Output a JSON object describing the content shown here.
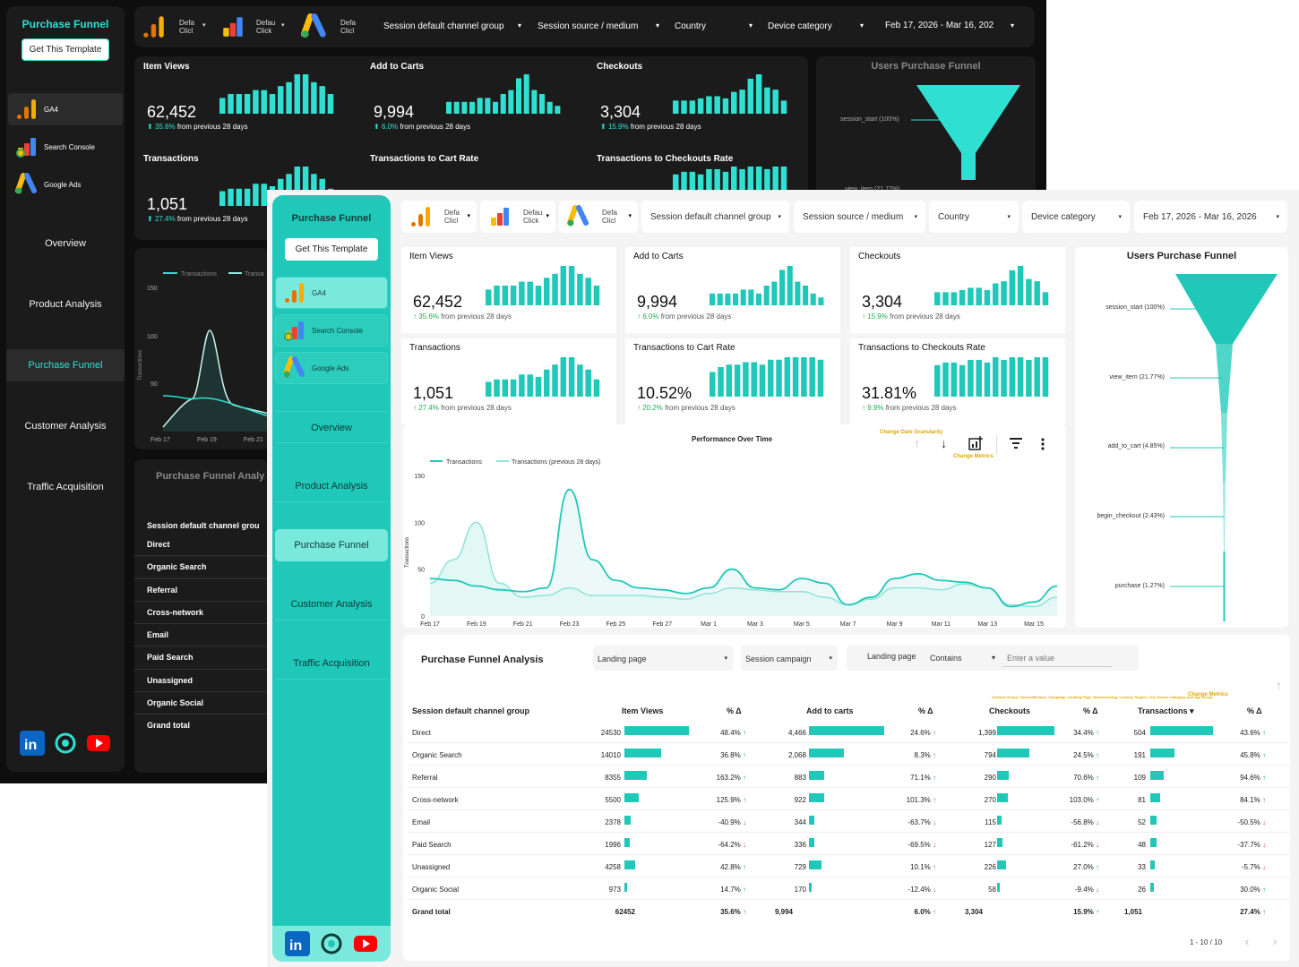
{
  "app_title": "Purchase Funnel",
  "template_button": "Get This Template",
  "sources": [
    {
      "label": "GA4",
      "icon": "ga4-icon"
    },
    {
      "label": "Search Console",
      "icon": "search-console-icon"
    },
    {
      "label": "Google Ads",
      "icon": "google-ads-icon"
    }
  ],
  "nav": [
    "Overview",
    "Product Analysis",
    "Purchase Funnel",
    "Customer Analysis",
    "Traffic Acquisition"
  ],
  "active_nav": "Purchase Funnel",
  "filters": {
    "logo_filter_labels": [
      "Defa Clicl",
      "Defau Click",
      "Defa Clicl"
    ],
    "channel_group": "Session default channel group",
    "source_medium": "Session source / medium",
    "country": "Country",
    "device": "Device category",
    "date_range": "Feb 17, 2026 - Mar 16, 2026",
    "date_range_dark": "Feb 17, 2026 - Mar 16, 202"
  },
  "kpis": [
    {
      "title": "Item Views",
      "value": "62,452",
      "change": "35.6%",
      "suffix": "from previous 28 days",
      "bars": [
        8,
        10,
        10,
        10,
        12,
        12,
        10,
        14,
        16,
        20,
        20,
        16,
        14,
        10
      ]
    },
    {
      "title": "Add to Carts",
      "value": "9,994",
      "change": "6.0%",
      "suffix": "from previous 28 days",
      "bars": [
        3,
        3,
        3,
        3,
        4,
        4,
        3,
        5,
        6,
        9,
        10,
        6,
        5,
        3,
        2
      ]
    },
    {
      "title": "Checkouts",
      "value": "3,304",
      "change": "15.9%",
      "suffix": "from previous 28 days",
      "bars": [
        6,
        6,
        6,
        7,
        8,
        8,
        7,
        10,
        11,
        16,
        18,
        12,
        11,
        6
      ]
    },
    {
      "title": "Transactions",
      "value": "1,051",
      "change": "27.4%",
      "suffix": "from previous 28 days",
      "bars": [
        6,
        7,
        7,
        7,
        9,
        9,
        8,
        11,
        13,
        16,
        16,
        13,
        11,
        7
      ]
    },
    {
      "title": "Transactions to Cart Rate",
      "value": "10.52%",
      "change": "20.2%",
      "suffix": "from previous 28 days",
      "bars": [
        10,
        12,
        13,
        13,
        14,
        14,
        13,
        15,
        15,
        16,
        16,
        16,
        16,
        15
      ]
    },
    {
      "title": "Transactions to Checkouts Rate",
      "value": "31.81%",
      "change": "9.9%",
      "suffix": "from previous 28 days",
      "bars": [
        12,
        13,
        13,
        12,
        14,
        14,
        13,
        15,
        14,
        15,
        15,
        14,
        15,
        15
      ]
    }
  ],
  "funnel": {
    "title": "Users Purchase Funnel",
    "stages": [
      {
        "label": "session_start (100%)",
        "pct": 100
      },
      {
        "label": "view_item (21.77%)",
        "pct": 21.77
      },
      {
        "label": "add_to_cart (4.85%)",
        "pct": 4.85
      },
      {
        "label": "begin_checkout (2.43%)",
        "pct": 2.43
      },
      {
        "label": "purchase (1.27%)",
        "pct": 1.27
      }
    ],
    "dark_labels": [
      "session_start (100%)",
      "view_item (21.77%)"
    ]
  },
  "chart_data": {
    "type": "line",
    "title": "Performance Over Time",
    "xlabel": "",
    "ylabel": "Transactions",
    "ylim": [
      0,
      150
    ],
    "yticks": [
      0,
      50,
      100,
      150
    ],
    "categories": [
      "Feb 17",
      "Feb 18",
      "Feb 19",
      "Feb 20",
      "Feb 21",
      "Feb 22",
      "Feb 23",
      "Feb 24",
      "Feb 25",
      "Feb 26",
      "Feb 27",
      "Feb 28",
      "Mar 1",
      "Mar 2",
      "Mar 3",
      "Mar 4",
      "Mar 5",
      "Mar 6",
      "Mar 7",
      "Mar 8",
      "Mar 9",
      "Mar 10",
      "Mar 11",
      "Mar 12",
      "Mar 13",
      "Mar 14",
      "Mar 15",
      "Mar 16"
    ],
    "tick_labels": [
      "Feb 17",
      "Feb 19",
      "Feb 21",
      "Feb 23",
      "Feb 25",
      "Feb 27",
      "Mar 1",
      "Mar 3",
      "Mar 5",
      "Mar 7",
      "Mar 9",
      "Mar 11",
      "Mar 13",
      "Mar 15"
    ],
    "series": [
      {
        "name": "Transactions",
        "values": [
          40,
          38,
          32,
          28,
          26,
          30,
          135,
          60,
          38,
          30,
          28,
          24,
          30,
          50,
          30,
          28,
          40,
          35,
          12,
          20,
          40,
          45,
          38,
          36,
          30,
          10,
          15,
          32
        ]
      },
      {
        "name": "Transactions (previous 28 days)",
        "values": [
          35,
          60,
          100,
          35,
          20,
          22,
          30,
          22,
          22,
          22,
          20,
          18,
          24,
          30,
          28,
          26,
          26,
          20,
          12,
          18,
          30,
          30,
          28,
          34,
          30,
          12,
          10,
          20
        ]
      }
    ],
    "annotations": [
      "Change Date Granularity",
      "Change Metrics"
    ]
  },
  "table": {
    "title": "Purchase Funnel Analysis",
    "dark_title": "Purchase Funnel Analy",
    "dark_header": "Session default channel grou",
    "controls": {
      "landing_page": "Landing page",
      "session_campaign": "Session campaign",
      "landing_label": "Landing page",
      "match": "Contains",
      "value_placeholder": "Enter a value"
    },
    "hint": "Channel Group, Source/Medium, Campaign, Landing Page, New/returning, Country, Region, City, Device Category, and Age Group",
    "change_metrics": "Change Metrics",
    "headers": [
      "Session default channel group",
      "Item Views",
      "% Δ",
      "Add to carts",
      "% Δ",
      "Checkouts",
      "% Δ",
      "Transactions ▾",
      "% Δ"
    ],
    "rows": [
      {
        "ch": "Direct",
        "iv": "24530",
        "iv_n": 24530,
        "ivp": "48.4%",
        "ivu": true,
        "ac": "4,466",
        "ac_n": 4466,
        "acp": "24.6%",
        "acu": true,
        "co": "1,399",
        "co_n": 1399,
        "cop": "34.4%",
        "cou": true,
        "tr": "504",
        "tr_n": 504,
        "trp": "43.6%",
        "tru": true
      },
      {
        "ch": "Organic Search",
        "iv": "14010",
        "iv_n": 14010,
        "ivp": "36.8%",
        "ivu": true,
        "ac": "2,068",
        "ac_n": 2068,
        "acp": "8.3%",
        "acu": true,
        "co": "794",
        "co_n": 794,
        "cop": "24.5%",
        "cou": true,
        "tr": "191",
        "tr_n": 191,
        "trp": "45.8%",
        "tru": true
      },
      {
        "ch": "Referral",
        "iv": "8355",
        "iv_n": 8355,
        "ivp": "163.2%",
        "ivu": true,
        "ac": "883",
        "ac_n": 883,
        "acp": "71.1%",
        "acu": true,
        "co": "290",
        "co_n": 290,
        "cop": "70.6%",
        "cou": true,
        "tr": "109",
        "tr_n": 109,
        "trp": "94.6%",
        "tru": true
      },
      {
        "ch": "Cross-network",
        "iv": "5500",
        "iv_n": 5500,
        "ivp": "125.9%",
        "ivu": true,
        "ac": "922",
        "ac_n": 922,
        "acp": "101.3%",
        "acu": true,
        "co": "270",
        "co_n": 270,
        "cop": "103.0%",
        "cou": true,
        "tr": "81",
        "tr_n": 81,
        "trp": "84.1%",
        "tru": true
      },
      {
        "ch": "Email",
        "iv": "2378",
        "iv_n": 2378,
        "ivp": "-40.9%",
        "ivu": false,
        "ac": "344",
        "ac_n": 344,
        "acp": "-63.7%",
        "acu": false,
        "co": "115",
        "co_n": 115,
        "cop": "-56.8%",
        "cou": false,
        "tr": "52",
        "tr_n": 52,
        "trp": "-50.5%",
        "tru": false
      },
      {
        "ch": "Paid Search",
        "iv": "1996",
        "iv_n": 1996,
        "ivp": "-64.2%",
        "ivu": false,
        "ac": "336",
        "ac_n": 336,
        "acp": "-69.5%",
        "acu": false,
        "co": "127",
        "co_n": 127,
        "cop": "-61.2%",
        "cou": false,
        "tr": "48",
        "tr_n": 48,
        "trp": "-37.7%",
        "tru": false
      },
      {
        "ch": "Unassigned",
        "iv": "4258",
        "iv_n": 4258,
        "ivp": "42.8%",
        "ivu": true,
        "ac": "729",
        "ac_n": 729,
        "acp": "10.1%",
        "acu": true,
        "co": "226",
        "co_n": 226,
        "cop": "27.0%",
        "cou": true,
        "tr": "33",
        "tr_n": 33,
        "trp": "-5.7%",
        "tru": false
      },
      {
        "ch": "Organic Social",
        "iv": "973",
        "iv_n": 973,
        "ivp": "14.7%",
        "ivu": true,
        "ac": "170",
        "ac_n": 170,
        "acp": "-12.4%",
        "acu": false,
        "co": "58",
        "co_n": 58,
        "cop": "-9.4%",
        "cou": false,
        "tr": "26",
        "tr_n": 26,
        "trp": "30.0%",
        "tru": true
      }
    ],
    "dark_rows": [
      "Direct",
      "Organic Search",
      "Referral",
      "Cross-network",
      "Email",
      "Paid Search",
      "Unassigned",
      "Organic Social",
      "Grand total"
    ],
    "total": {
      "ch": "Grand total",
      "iv": "62452",
      "ivp": "35.6%",
      "ac": "9,994",
      "acp": "6.0%",
      "co": "3,304",
      "cop": "15.9%",
      "tr": "1,051",
      "trp": "27.4%"
    },
    "pagination": "1 - 10 / 10"
  },
  "dark_chart": {
    "legend": [
      "Transactions",
      "Transa"
    ],
    "ticks": [
      "150",
      "100",
      "50"
    ],
    "xticks": [
      "Feb 17",
      "Feb 19",
      "Feb 21"
    ],
    "ylabel": "Transactions"
  },
  "colors": {
    "teal": "#1fc8b8",
    "bright_teal": "#2fe0d2",
    "dark_bg": "#0e0e0e",
    "up": "#1ab34e",
    "down": "#e53935"
  }
}
